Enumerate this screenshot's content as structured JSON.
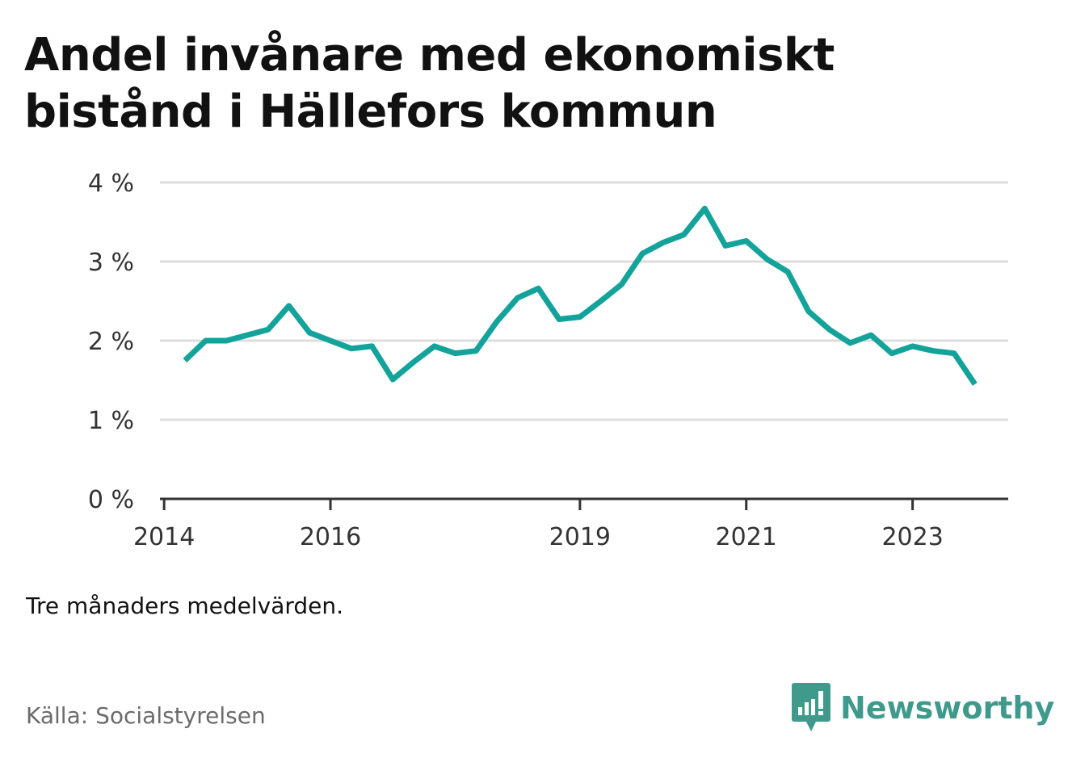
{
  "title": "Andel invånare med ekonomiskt bistånd i Hällefors kommun",
  "note": "Tre månaders medelvärden.",
  "source": "Källa: Socialstyrelsen",
  "brand": {
    "name": "Newsworthy",
    "icon": "newsworthy-logo-icon"
  },
  "colors": {
    "line": "#14a39a",
    "grid": "#dddddd",
    "axis": "#333333"
  },
  "chart_data": {
    "type": "line",
    "title": "Andel invånare med ekonomiskt bistånd i Hällefors kommun",
    "xlabel": "",
    "ylabel": "",
    "ylim": [
      0,
      4
    ],
    "y_ticks": [
      0,
      1,
      2,
      3,
      4
    ],
    "y_tick_labels": [
      "0 %",
      "1 %",
      "2 %",
      "3 %",
      "4 %"
    ],
    "x_ticks": [
      2014,
      2016,
      2019,
      2021,
      2023
    ],
    "x_tick_labels": [
      "2014",
      "2016",
      "2019",
      "2021",
      "2023"
    ],
    "grid": true,
    "series": [
      {
        "x": [
          2014.25,
          2014.5,
          2014.75,
          2015.0,
          2015.25,
          2015.5,
          2015.75,
          2016.0,
          2016.25,
          2016.5,
          2016.75,
          2017.0,
          2017.25,
          2017.5,
          2017.75,
          2018.0,
          2018.25,
          2018.5,
          2018.75,
          2019.0,
          2019.25,
          2019.5,
          2019.75,
          2020.0,
          2020.25,
          2020.5,
          2020.75,
          2021.0,
          2021.25,
          2021.5,
          2021.75,
          2022.0,
          2022.25,
          2022.5,
          2022.75,
          2023.0,
          2023.25,
          2023.5,
          2023.75
        ],
        "values": [
          1.75,
          2.0,
          2.0,
          2.07,
          2.14,
          2.44,
          2.1,
          2.0,
          1.9,
          1.93,
          1.51,
          1.73,
          1.93,
          1.84,
          1.87,
          2.24,
          2.54,
          2.66,
          2.27,
          2.3,
          2.5,
          2.71,
          3.1,
          3.24,
          3.34,
          3.67,
          3.2,
          3.26,
          3.03,
          2.87,
          2.37,
          2.14,
          1.97,
          2.07,
          1.84,
          1.93,
          1.87,
          1.84,
          1.45
        ]
      }
    ]
  }
}
